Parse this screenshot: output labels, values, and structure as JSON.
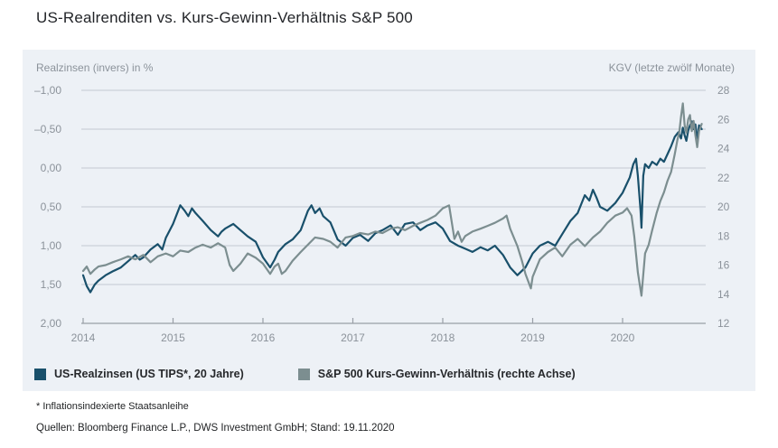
{
  "title": "US-Realrenditen vs. Kurs-Gewinn-Verhältnis S&P 500",
  "footnote": "* Inflationsindexierte Staatsanleihe",
  "source": "Quellen: Bloomberg Finance L.P., DWS Investment GmbH; Stand: 19.11.2020",
  "colors": {
    "panel_background": "#edf1f6",
    "gridline": "#c2c9d1",
    "baseline": "#999fa6",
    "tick_text": "#8b929a",
    "series_realyield": "#19506b",
    "series_kgv": "#7c8e90"
  },
  "chart_data": {
    "type": "line",
    "title": "US-Realrenditen vs. Kurs-Gewinn-Verhältnis S&P 500",
    "grid": true,
    "legend_position": "bottom",
    "x_range": [
      2014,
      2020.92
    ],
    "x_ticks": [
      2014,
      2015,
      2016,
      2017,
      2018,
      2019,
      2020
    ],
    "left_axis": {
      "label": "Realzinsen (invers) in %",
      "inverted": true,
      "range": [
        -1.0,
        2.0
      ],
      "ticks": [
        "–1,00",
        "–0,50",
        "0,00",
        "0,50",
        "1,00",
        "1,50",
        "2,00"
      ]
    },
    "right_axis": {
      "label": "KGV (letzte zwölf Monate)",
      "range": [
        12,
        28
      ],
      "ticks": [
        "28",
        "26",
        "24",
        "22",
        "20",
        "18",
        "16",
        "14",
        "12"
      ]
    },
    "series": [
      {
        "name": "US-Realzinsen (US TIPS*, 20 Jahre)",
        "axis": "left",
        "color": "#19506b",
        "unit": "%",
        "points": [
          [
            2014.0,
            1.38
          ],
          [
            2014.04,
            1.52
          ],
          [
            2014.08,
            1.6
          ],
          [
            2014.13,
            1.5
          ],
          [
            2014.17,
            1.45
          ],
          [
            2014.25,
            1.38
          ],
          [
            2014.33,
            1.33
          ],
          [
            2014.42,
            1.28
          ],
          [
            2014.5,
            1.2
          ],
          [
            2014.58,
            1.12
          ],
          [
            2014.63,
            1.18
          ],
          [
            2014.67,
            1.15
          ],
          [
            2014.75,
            1.05
          ],
          [
            2014.83,
            0.98
          ],
          [
            2014.88,
            1.05
          ],
          [
            2014.92,
            0.9
          ],
          [
            2015.0,
            0.72
          ],
          [
            2015.08,
            0.48
          ],
          [
            2015.13,
            0.55
          ],
          [
            2015.17,
            0.62
          ],
          [
            2015.21,
            0.52
          ],
          [
            2015.25,
            0.58
          ],
          [
            2015.33,
            0.68
          ],
          [
            2015.42,
            0.8
          ],
          [
            2015.5,
            0.88
          ],
          [
            2015.54,
            0.82
          ],
          [
            2015.58,
            0.78
          ],
          [
            2015.67,
            0.72
          ],
          [
            2015.75,
            0.8
          ],
          [
            2015.83,
            0.88
          ],
          [
            2015.92,
            0.95
          ],
          [
            2016.0,
            1.15
          ],
          [
            2016.08,
            1.28
          ],
          [
            2016.13,
            1.18
          ],
          [
            2016.17,
            1.08
          ],
          [
            2016.25,
            0.98
          ],
          [
            2016.33,
            0.92
          ],
          [
            2016.42,
            0.8
          ],
          [
            2016.5,
            0.55
          ],
          [
            2016.54,
            0.48
          ],
          [
            2016.58,
            0.58
          ],
          [
            2016.63,
            0.52
          ],
          [
            2016.67,
            0.62
          ],
          [
            2016.75,
            0.7
          ],
          [
            2016.83,
            0.92
          ],
          [
            2016.92,
            1.0
          ],
          [
            2017.0,
            0.9
          ],
          [
            2017.08,
            0.86
          ],
          [
            2017.17,
            0.94
          ],
          [
            2017.25,
            0.84
          ],
          [
            2017.33,
            0.8
          ],
          [
            2017.42,
            0.74
          ],
          [
            2017.5,
            0.86
          ],
          [
            2017.58,
            0.72
          ],
          [
            2017.67,
            0.7
          ],
          [
            2017.75,
            0.8
          ],
          [
            2017.83,
            0.74
          ],
          [
            2017.92,
            0.7
          ],
          [
            2018.0,
            0.78
          ],
          [
            2018.08,
            0.94
          ],
          [
            2018.17,
            1.0
          ],
          [
            2018.25,
            1.04
          ],
          [
            2018.33,
            1.08
          ],
          [
            2018.42,
            1.02
          ],
          [
            2018.5,
            1.06
          ],
          [
            2018.58,
            1.0
          ],
          [
            2018.67,
            1.12
          ],
          [
            2018.75,
            1.28
          ],
          [
            2018.83,
            1.38
          ],
          [
            2018.92,
            1.28
          ],
          [
            2019.0,
            1.1
          ],
          [
            2019.08,
            1.0
          ],
          [
            2019.17,
            0.95
          ],
          [
            2019.25,
            1.0
          ],
          [
            2019.33,
            0.85
          ],
          [
            2019.42,
            0.68
          ],
          [
            2019.5,
            0.58
          ],
          [
            2019.58,
            0.35
          ],
          [
            2019.63,
            0.42
          ],
          [
            2019.67,
            0.28
          ],
          [
            2019.71,
            0.38
          ],
          [
            2019.75,
            0.5
          ],
          [
            2019.83,
            0.55
          ],
          [
            2019.92,
            0.45
          ],
          [
            2020.0,
            0.32
          ],
          [
            2020.04,
            0.22
          ],
          [
            2020.08,
            0.12
          ],
          [
            2020.12,
            -0.05
          ],
          [
            2020.15,
            -0.12
          ],
          [
            2020.17,
            0.1
          ],
          [
            2020.2,
            0.55
          ],
          [
            2020.21,
            0.77
          ],
          [
            2020.23,
            0.1
          ],
          [
            2020.25,
            -0.05
          ],
          [
            2020.29,
            0.0
          ],
          [
            2020.33,
            -0.08
          ],
          [
            2020.38,
            -0.04
          ],
          [
            2020.42,
            -0.12
          ],
          [
            2020.46,
            -0.08
          ],
          [
            2020.5,
            -0.18
          ],
          [
            2020.54,
            -0.28
          ],
          [
            2020.58,
            -0.4
          ],
          [
            2020.62,
            -0.46
          ],
          [
            2020.65,
            -0.38
          ],
          [
            2020.67,
            -0.52
          ],
          [
            2020.69,
            -0.42
          ],
          [
            2020.71,
            -0.35
          ],
          [
            2020.73,
            -0.48
          ],
          [
            2020.75,
            -0.55
          ],
          [
            2020.77,
            -0.6
          ],
          [
            2020.79,
            -0.5
          ],
          [
            2020.81,
            -0.56
          ],
          [
            2020.83,
            -0.35
          ],
          [
            2020.85,
            -0.55
          ],
          [
            2020.88,
            -0.5
          ]
        ]
      },
      {
        "name": "S&P 500 Kurs-Gewinn-Verhältnis (rechte Achse)",
        "axis": "right",
        "color": "#7c8e90",
        "unit": "x",
        "points": [
          [
            2014.0,
            15.6
          ],
          [
            2014.04,
            15.9
          ],
          [
            2014.08,
            15.4
          ],
          [
            2014.13,
            15.7
          ],
          [
            2014.17,
            15.9
          ],
          [
            2014.25,
            16.0
          ],
          [
            2014.33,
            16.2
          ],
          [
            2014.42,
            16.4
          ],
          [
            2014.5,
            16.6
          ],
          [
            2014.58,
            16.4
          ],
          [
            2014.67,
            16.7
          ],
          [
            2014.75,
            16.2
          ],
          [
            2014.83,
            16.6
          ],
          [
            2014.92,
            16.8
          ],
          [
            2015.0,
            16.6
          ],
          [
            2015.08,
            17.0
          ],
          [
            2015.17,
            16.9
          ],
          [
            2015.25,
            17.2
          ],
          [
            2015.33,
            17.4
          ],
          [
            2015.42,
            17.2
          ],
          [
            2015.5,
            17.5
          ],
          [
            2015.58,
            17.2
          ],
          [
            2015.63,
            16.0
          ],
          [
            2015.67,
            15.6
          ],
          [
            2015.75,
            16.1
          ],
          [
            2015.83,
            16.8
          ],
          [
            2015.92,
            16.5
          ],
          [
            2016.0,
            16.1
          ],
          [
            2016.08,
            15.4
          ],
          [
            2016.13,
            15.9
          ],
          [
            2016.17,
            16.1
          ],
          [
            2016.21,
            15.4
          ],
          [
            2016.25,
            15.6
          ],
          [
            2016.33,
            16.3
          ],
          [
            2016.42,
            16.9
          ],
          [
            2016.5,
            17.4
          ],
          [
            2016.58,
            17.9
          ],
          [
            2016.67,
            17.8
          ],
          [
            2016.75,
            17.6
          ],
          [
            2016.83,
            17.2
          ],
          [
            2016.92,
            17.9
          ],
          [
            2017.0,
            18.0
          ],
          [
            2017.08,
            18.2
          ],
          [
            2017.17,
            18.1
          ],
          [
            2017.25,
            18.3
          ],
          [
            2017.33,
            18.2
          ],
          [
            2017.42,
            18.5
          ],
          [
            2017.5,
            18.6
          ],
          [
            2017.58,
            18.4
          ],
          [
            2017.67,
            18.7
          ],
          [
            2017.75,
            18.9
          ],
          [
            2017.83,
            19.1
          ],
          [
            2017.92,
            19.4
          ],
          [
            2018.0,
            19.9
          ],
          [
            2018.07,
            20.1
          ],
          [
            2018.13,
            17.8
          ],
          [
            2018.17,
            18.3
          ],
          [
            2018.21,
            17.6
          ],
          [
            2018.25,
            18.0
          ],
          [
            2018.33,
            18.3
          ],
          [
            2018.42,
            18.5
          ],
          [
            2018.5,
            18.7
          ],
          [
            2018.58,
            18.9
          ],
          [
            2018.67,
            19.2
          ],
          [
            2018.71,
            19.4
          ],
          [
            2018.75,
            18.5
          ],
          [
            2018.83,
            17.3
          ],
          [
            2018.88,
            16.3
          ],
          [
            2018.92,
            15.4
          ],
          [
            2018.98,
            14.4
          ],
          [
            2019.0,
            15.2
          ],
          [
            2019.08,
            16.4
          ],
          [
            2019.17,
            16.9
          ],
          [
            2019.25,
            17.2
          ],
          [
            2019.33,
            16.6
          ],
          [
            2019.42,
            17.4
          ],
          [
            2019.5,
            17.8
          ],
          [
            2019.58,
            17.3
          ],
          [
            2019.67,
            17.9
          ],
          [
            2019.75,
            18.3
          ],
          [
            2019.83,
            18.9
          ],
          [
            2019.92,
            19.4
          ],
          [
            2020.0,
            19.6
          ],
          [
            2020.05,
            19.9
          ],
          [
            2020.1,
            19.4
          ],
          [
            2020.13,
            18.0
          ],
          [
            2020.17,
            15.5
          ],
          [
            2020.21,
            13.9
          ],
          [
            2020.25,
            16.8
          ],
          [
            2020.29,
            17.4
          ],
          [
            2020.33,
            18.4
          ],
          [
            2020.38,
            19.6
          ],
          [
            2020.42,
            20.4
          ],
          [
            2020.46,
            21.0
          ],
          [
            2020.5,
            21.8
          ],
          [
            2020.54,
            22.4
          ],
          [
            2020.58,
            23.6
          ],
          [
            2020.61,
            24.6
          ],
          [
            2020.63,
            25.1
          ],
          [
            2020.65,
            26.2
          ],
          [
            2020.67,
            27.1
          ],
          [
            2020.69,
            25.6
          ],
          [
            2020.71,
            25.1
          ],
          [
            2020.73,
            26.0
          ],
          [
            2020.75,
            26.3
          ],
          [
            2020.77,
            25.2
          ],
          [
            2020.79,
            25.9
          ],
          [
            2020.81,
            24.9
          ],
          [
            2020.83,
            24.1
          ],
          [
            2020.85,
            25.2
          ],
          [
            2020.88,
            25.7
          ]
        ]
      }
    ]
  }
}
